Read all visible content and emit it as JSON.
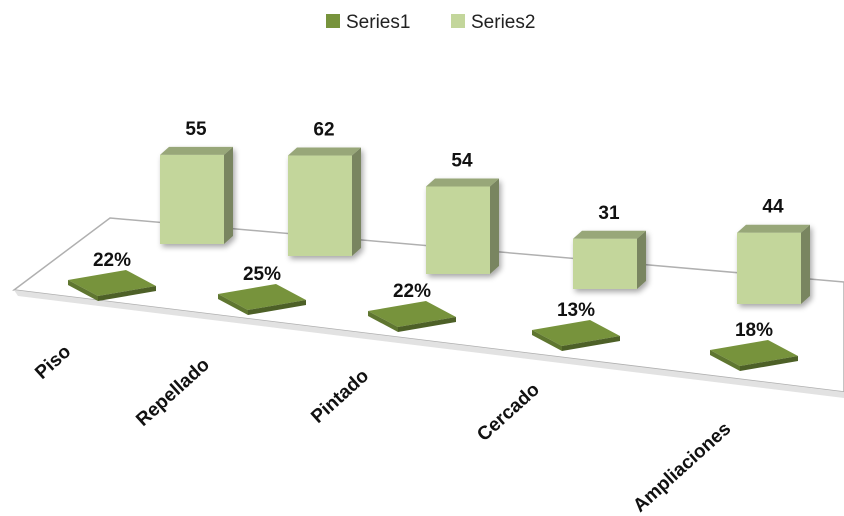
{
  "chart_data": {
    "type": "bar",
    "subtype": "3d-column-stacked-depth",
    "categories": [
      "Piso",
      "Repellado",
      "Pintado",
      "Cercado",
      "Ampliaciones"
    ],
    "series": [
      {
        "name": "Series1",
        "values": [
          22,
          25,
          22,
          13,
          18
        ],
        "labels": [
          "22%",
          "25%",
          "22%",
          "13%",
          "18%"
        ],
        "color": "#77933c"
      },
      {
        "name": "Series2",
        "values": [
          55,
          62,
          54,
          31,
          44
        ],
        "labels": [
          "55",
          "62",
          "54",
          "31",
          "44"
        ],
        "color": "#c3d69b"
      }
    ],
    "legend_position": "top",
    "grid": false
  }
}
